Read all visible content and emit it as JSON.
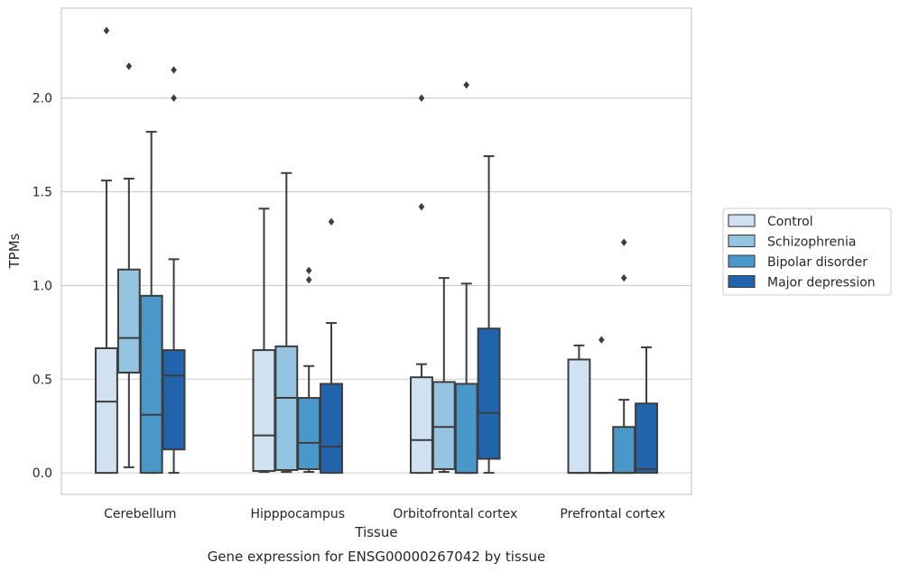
{
  "chart_data": {
    "type": "boxplot",
    "caption": "Gene expression for ENSG00000267042 by tissue",
    "xlabel": "Tissue",
    "ylabel": "TPMs",
    "ylim": [
      -0.115,
      2.48
    ],
    "yticks": [
      0.0,
      0.5,
      1.0,
      1.5,
      2.0
    ],
    "ytick_labels": [
      "0.0",
      "0.5",
      "1.0",
      "1.5",
      "2.0"
    ],
    "grid": "horizontal",
    "legend_position": "right",
    "categories": [
      "Cerebellum",
      "Hipppocampus",
      "Orbitofrontal cortex",
      "Prefrontal cortex"
    ],
    "series": [
      {
        "name": "Control",
        "color": "#d0e1f2",
        "boxes": [
          {
            "whislo": 0.0,
            "q1": 0.0,
            "med": 0.38,
            "q3": 0.665,
            "whishi": 1.56,
            "fliers": [
              2.36
            ]
          },
          {
            "whislo": 0.005,
            "q1": 0.01,
            "med": 0.2,
            "q3": 0.655,
            "whishi": 1.41,
            "fliers": []
          },
          {
            "whislo": 0.0,
            "q1": 0.0,
            "med": 0.175,
            "q3": 0.51,
            "whishi": 0.58,
            "fliers": [
              1.42,
              2.0
            ]
          },
          {
            "whislo": 0.0,
            "q1": 0.0,
            "med": 0.0,
            "q3": 0.605,
            "whishi": 0.68,
            "fliers": []
          }
        ]
      },
      {
        "name": "Schizophrenia",
        "color": "#94c4df",
        "boxes": [
          {
            "whislo": 0.03,
            "q1": 0.535,
            "med": 0.72,
            "q3": 1.085,
            "whishi": 1.57,
            "fliers": [
              2.17
            ]
          },
          {
            "whislo": 0.005,
            "q1": 0.015,
            "med": 0.4,
            "q3": 0.675,
            "whishi": 1.6,
            "fliers": []
          },
          {
            "whislo": 0.005,
            "q1": 0.02,
            "med": 0.245,
            "q3": 0.485,
            "whishi": 1.04,
            "fliers": []
          },
          {
            "whislo": 0.0,
            "q1": 0.0,
            "med": 0.0,
            "q3": 0.0,
            "whishi": 0.0,
            "fliers": [
              0.71
            ]
          }
        ]
      },
      {
        "name": "Bipolar disorder",
        "color": "#4a98c9",
        "boxes": [
          {
            "whislo": 0.0,
            "q1": 0.0,
            "med": 0.31,
            "q3": 0.945,
            "whishi": 1.82,
            "fliers": []
          },
          {
            "whislo": 0.005,
            "q1": 0.02,
            "med": 0.16,
            "q3": 0.4,
            "whishi": 0.57,
            "fliers": [
              1.03,
              1.08
            ]
          },
          {
            "whislo": 0.0,
            "q1": 0.0,
            "med": 0.0,
            "q3": 0.475,
            "whishi": 1.01,
            "fliers": [
              2.07
            ]
          },
          {
            "whislo": 0.0,
            "q1": 0.0,
            "med": 0.0,
            "q3": 0.245,
            "whishi": 0.39,
            "fliers": [
              1.04,
              1.23
            ]
          }
        ]
      },
      {
        "name": "Major depression",
        "color": "#2164ab",
        "boxes": [
          {
            "whislo": 0.0,
            "q1": 0.125,
            "med": 0.52,
            "q3": 0.655,
            "whishi": 1.14,
            "fliers": [
              2.0,
              2.15
            ]
          },
          {
            "whislo": 0.0,
            "q1": 0.0,
            "med": 0.14,
            "q3": 0.475,
            "whishi": 0.8,
            "fliers": [
              1.34
            ]
          },
          {
            "whislo": 0.0,
            "q1": 0.075,
            "med": 0.32,
            "q3": 0.77,
            "whishi": 1.69,
            "fliers": []
          },
          {
            "whislo": 0.0,
            "q1": 0.0,
            "med": 0.02,
            "q3": 0.37,
            "whishi": 0.67,
            "fliers": []
          }
        ]
      }
    ]
  }
}
